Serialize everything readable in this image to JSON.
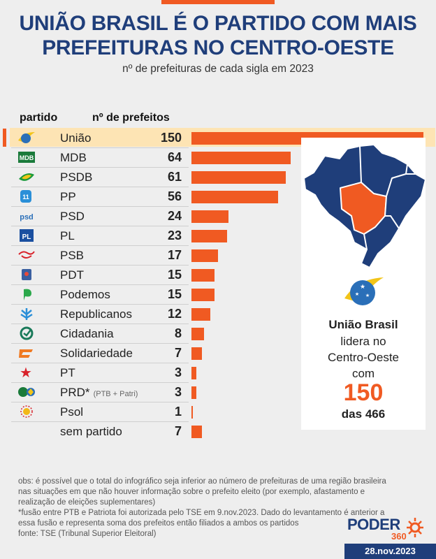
{
  "header": {
    "title_line1": "UNIÃO BRASIL É O PARTIDO COM MAIS",
    "title_line2": "PREFEITURAS NO CENTRO-OESTE",
    "subtitle": "nº de prefeituras de cada sigla em 2023"
  },
  "columns": {
    "party": "partido",
    "count": "nº de prefeitos"
  },
  "chart_data": {
    "type": "bar",
    "orientation": "horizontal",
    "title": "UNIÃO BRASIL É O PARTIDO COM MAIS PREFEITURAS NO CENTRO-OESTE",
    "subtitle": "nº de prefeituras de cada sigla em 2023",
    "xlim": [
      0,
      150
    ],
    "grid": false,
    "legend": "none",
    "highlight": "União",
    "categories": [
      "União",
      "MDB",
      "PSDB",
      "PP",
      "PSD",
      "PL",
      "PSB",
      "PDT",
      "Podemos",
      "Republicanos",
      "Cidadania",
      "Solidariedade",
      "PT",
      "PRD*",
      "Psol",
      "sem partido"
    ],
    "notes": [
      "",
      "",
      "",
      "",
      "",
      "",
      "",
      "",
      "",
      "",
      "",
      "",
      "",
      "(PTB + Patri)",
      "",
      ""
    ],
    "values": [
      150,
      64,
      61,
      56,
      24,
      23,
      17,
      15,
      15,
      12,
      8,
      7,
      3,
      3,
      1,
      7
    ],
    "logos": [
      "uniao-brasil-icon",
      "mdb-icon",
      "psdb-icon",
      "pp-icon",
      "psd-icon",
      "pl-icon",
      "psb-icon",
      "pdt-icon",
      "podemos-icon",
      "republicanos-icon",
      "cidadania-icon",
      "solidariedade-icon",
      "pt-icon",
      "prd-icon",
      "psol-icon",
      ""
    ],
    "bar_color": "#f05a22"
  },
  "panel": {
    "party": "União Brasil",
    "line2": "lidera no",
    "line3": "Centro-Oeste",
    "line4": "com",
    "number": "150",
    "total": "das 466",
    "map_colors": {
      "region": "#f05a22",
      "rest": "#1f3e7a"
    }
  },
  "footer": {
    "obs1": "obs: é possível que o total do infográfico seja inferior ao número de prefeituras de uma região brasileira",
    "obs2": "nas situações em que não houver informação sobre o prefeito eleito (por exemplo, afastamento e",
    "obs3": "realização de eleições suplementares)",
    "obs4": "*fusão entre PTB e Patriota foi autorizada pelo TSE em 9.nov.2023. Dado do levantamento é anterior a",
    "obs5": "essa fusão e representa soma dos prefeitos então filiados a ambos os partidos",
    "source": "fonte: TSE (Tribunal Superior Eleitoral)",
    "brand": "PODER",
    "brand_num": "360",
    "date": "28.nov.2023"
  },
  "colors": {
    "accent": "#f05a22",
    "navy": "#1f3e7a",
    "highlight": "#fde4b4",
    "background": "#eeeeee"
  }
}
